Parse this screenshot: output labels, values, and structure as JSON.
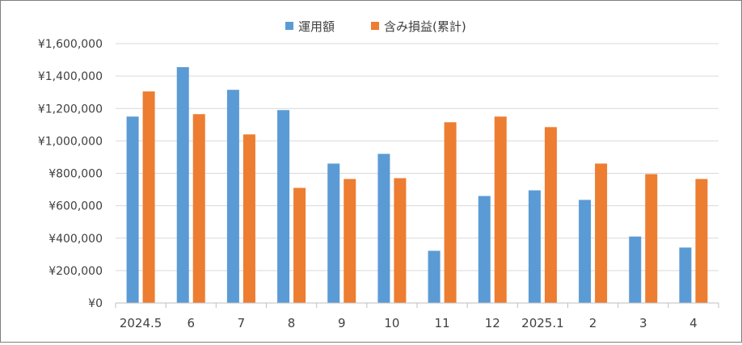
{
  "chart_data": {
    "type": "bar",
    "title": "",
    "xlabel": "",
    "ylabel": "",
    "categories": [
      "2024.5",
      "6",
      "7",
      "8",
      "9",
      "10",
      "11",
      "12",
      "2025.1",
      "2",
      "3",
      "4"
    ],
    "series": [
      {
        "name": "運用額",
        "color": "#5B9BD5",
        "values": [
          1150000,
          1455000,
          1315000,
          1190000,
          860000,
          920000,
          322000,
          660000,
          695000,
          636000,
          410000,
          342000
        ]
      },
      {
        "name": "含み損益(累計)",
        "color": "#ED7D31",
        "values": [
          1305000,
          1165000,
          1040000,
          710000,
          765000,
          770000,
          1115000,
          1150000,
          1085000,
          860000,
          795000,
          765000
        ]
      }
    ],
    "ylim": [
      0,
      1600000
    ],
    "yticks": [
      0,
      200000,
      400000,
      600000,
      800000,
      1000000,
      1200000,
      1400000,
      1600000
    ],
    "ytick_labels": [
      "¥0",
      "¥200,000",
      "¥400,000",
      "¥600,000",
      "¥800,000",
      "¥1,000,000",
      "¥1,200,000",
      "¥1,400,000",
      "¥1,600,000"
    ],
    "grid": true,
    "legend_position": "top"
  }
}
